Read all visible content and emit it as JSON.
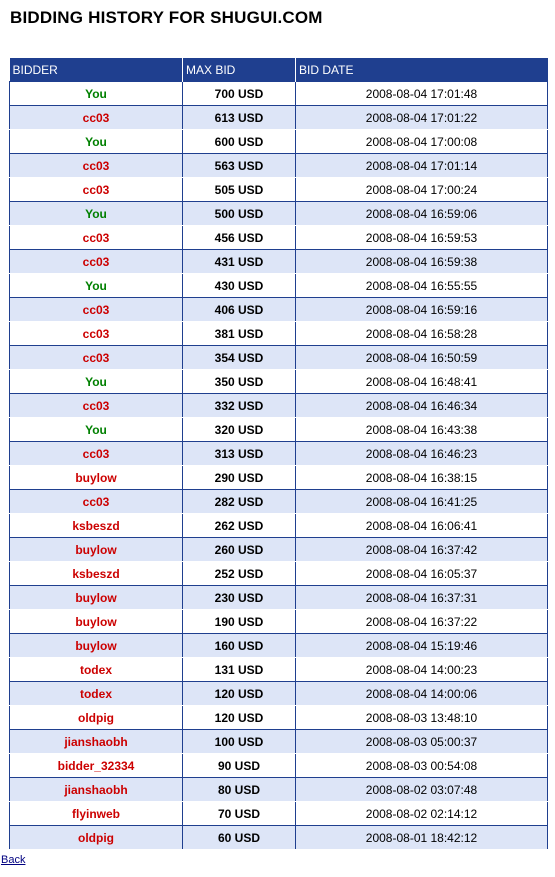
{
  "page": {
    "title": "BIDDING HISTORY FOR SHUGUI.COM",
    "back_label": "Back"
  },
  "colors": {
    "header_bg": "#1f3f8f",
    "stripe_bg": "#dde5f7",
    "you_color": "#008000",
    "other_color": "#cc0000"
  },
  "table": {
    "headers": [
      "BIDDER",
      "MAX BID",
      "BID DATE"
    ],
    "rows": [
      {
        "bidder": "You",
        "max_bid": "700 USD",
        "date": "2008-08-04 17:01:48"
      },
      {
        "bidder": "cc03",
        "max_bid": "613 USD",
        "date": "2008-08-04 17:01:22"
      },
      {
        "bidder": "You",
        "max_bid": "600 USD",
        "date": "2008-08-04 17:00:08"
      },
      {
        "bidder": "cc03",
        "max_bid": "563 USD",
        "date": "2008-08-04 17:01:14"
      },
      {
        "bidder": "cc03",
        "max_bid": "505 USD",
        "date": "2008-08-04 17:00:24"
      },
      {
        "bidder": "You",
        "max_bid": "500 USD",
        "date": "2008-08-04 16:59:06"
      },
      {
        "bidder": "cc03",
        "max_bid": "456 USD",
        "date": "2008-08-04 16:59:53"
      },
      {
        "bidder": "cc03",
        "max_bid": "431 USD",
        "date": "2008-08-04 16:59:38"
      },
      {
        "bidder": "You",
        "max_bid": "430 USD",
        "date": "2008-08-04 16:55:55"
      },
      {
        "bidder": "cc03",
        "max_bid": "406 USD",
        "date": "2008-08-04 16:59:16"
      },
      {
        "bidder": "cc03",
        "max_bid": "381 USD",
        "date": "2008-08-04 16:58:28"
      },
      {
        "bidder": "cc03",
        "max_bid": "354 USD",
        "date": "2008-08-04 16:50:59"
      },
      {
        "bidder": "You",
        "max_bid": "350 USD",
        "date": "2008-08-04 16:48:41"
      },
      {
        "bidder": "cc03",
        "max_bid": "332 USD",
        "date": "2008-08-04 16:46:34"
      },
      {
        "bidder": "You",
        "max_bid": "320 USD",
        "date": "2008-08-04 16:43:38"
      },
      {
        "bidder": "cc03",
        "max_bid": "313 USD",
        "date": "2008-08-04 16:46:23"
      },
      {
        "bidder": "buylow",
        "max_bid": "290 USD",
        "date": "2008-08-04 16:38:15"
      },
      {
        "bidder": "cc03",
        "max_bid": "282 USD",
        "date": "2008-08-04 16:41:25"
      },
      {
        "bidder": "ksbeszd",
        "max_bid": "262 USD",
        "date": "2008-08-04 16:06:41"
      },
      {
        "bidder": "buylow",
        "max_bid": "260 USD",
        "date": "2008-08-04 16:37:42"
      },
      {
        "bidder": "ksbeszd",
        "max_bid": "252 USD",
        "date": "2008-08-04 16:05:37"
      },
      {
        "bidder": "buylow",
        "max_bid": "230 USD",
        "date": "2008-08-04 16:37:31"
      },
      {
        "bidder": "buylow",
        "max_bid": "190 USD",
        "date": "2008-08-04 16:37:22"
      },
      {
        "bidder": "buylow",
        "max_bid": "160 USD",
        "date": "2008-08-04 15:19:46"
      },
      {
        "bidder": "todex",
        "max_bid": "131 USD",
        "date": "2008-08-04 14:00:23"
      },
      {
        "bidder": "todex",
        "max_bid": "120 USD",
        "date": "2008-08-04 14:00:06"
      },
      {
        "bidder": "oldpig",
        "max_bid": "120 USD",
        "date": "2008-08-03 13:48:10"
      },
      {
        "bidder": "jianshaobh",
        "max_bid": "100 USD",
        "date": "2008-08-03 05:00:37"
      },
      {
        "bidder": "bidder_32334",
        "max_bid": "90 USD",
        "date": "2008-08-03 00:54:08"
      },
      {
        "bidder": "jianshaobh",
        "max_bid": "80 USD",
        "date": "2008-08-02 03:07:48"
      },
      {
        "bidder": "flyinweb",
        "max_bid": "70 USD",
        "date": "2008-08-02 02:14:12"
      },
      {
        "bidder": "oldpig",
        "max_bid": "60 USD",
        "date": "2008-08-01 18:42:12"
      }
    ]
  }
}
